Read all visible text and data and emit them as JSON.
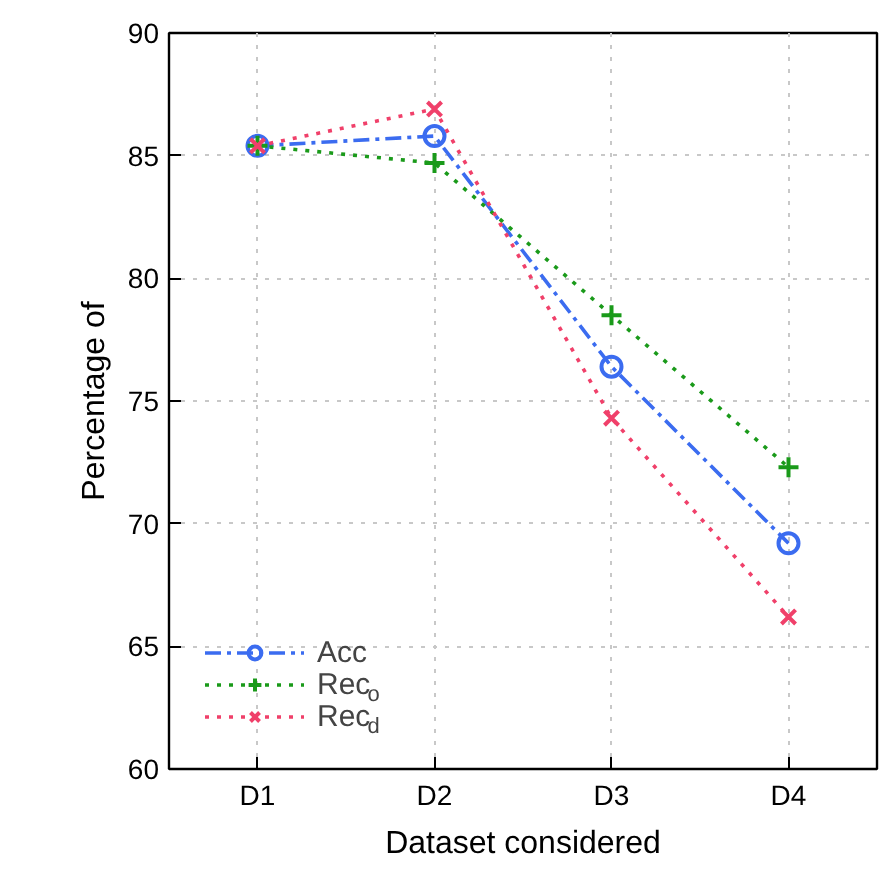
{
  "chart_data": {
    "type": "line",
    "xlabel": "Dataset considered",
    "ylabel": "Percentage of",
    "categories": [
      "D1",
      "D2",
      "D3",
      "D4"
    ],
    "ylim": [
      60,
      90
    ],
    "yticks": [
      60,
      65,
      70,
      75,
      80,
      85,
      90
    ],
    "grid": true,
    "legend": "bottom left",
    "series": [
      {
        "name": "Acc",
        "color": "#3b6cf0",
        "marker": "circle",
        "line_style": "dashdot",
        "values": [
          85.4,
          85.8,
          76.4,
          69.2
        ]
      },
      {
        "name": "Rec$_{o}$",
        "color": "#1a9a1a",
        "marker": "cross",
        "line_style": "dotted",
        "values": [
          85.4,
          84.7,
          78.5,
          72.3
        ]
      },
      {
        "name": "Rec$_{d}$",
        "color": "#f0406a",
        "marker": "x",
        "line_style": "dotted",
        "values": [
          85.4,
          86.9,
          74.3,
          66.2
        ]
      }
    ]
  }
}
